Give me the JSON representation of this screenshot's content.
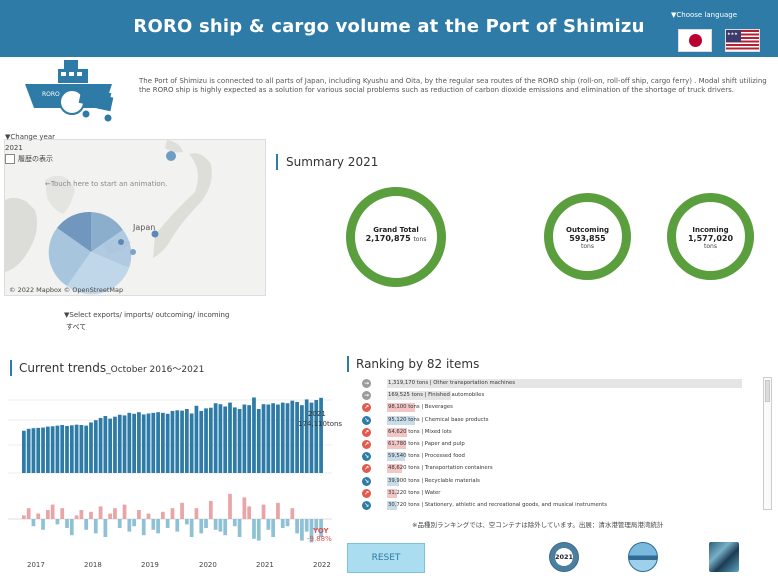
{
  "header": {
    "title": "RORO ship & cargo volume at the Port of Shimizu",
    "choose_language": "▼Choose language"
  },
  "intro": {
    "text": "The Port of Shimizu is connected to all parts of Japan, including Kyushu and Oita, by the regular sea routes of the RORO ship (roll-on, roll-off ship, cargo ferry) . Modal shift utilizing the RORO ship is highly expected as a solution for various social problems such as reduction of carbon dioxide emissions and elimination of the shortage of truck drivers.",
    "ship_label": "RORO"
  },
  "map": {
    "change_year_label": "▼Change year",
    "year": "2021",
    "history_label": "履歴の表示",
    "hint": "←Touch here to start an animation.",
    "japan_label": "Japan",
    "credit": "© 2022 Mapbox © OpenStreetMap",
    "select_label": "▼Select exports/ imports/ outcoming/ incoming",
    "select_value": "すべて"
  },
  "summary": {
    "title": "Summary 2021",
    "grand_total": {
      "label": "Grand Total",
      "value": "2,170,875",
      "unit": "tons"
    },
    "outcoming": {
      "label": "Outcoming",
      "value": "593,855",
      "unit": "tons"
    },
    "incoming": {
      "label": "Incoming",
      "value": "1,577,020",
      "unit": "tons"
    }
  },
  "trends": {
    "title": "Current trends",
    "subtitle": "_October 2016～2021",
    "bar_label_year": "2021",
    "bar_label_value": "174,110tons",
    "yoy_label": "YOY",
    "yoy_value": "-9.88%",
    "years": [
      "2017",
      "2018",
      "2019",
      "2020",
      "2021",
      "2022"
    ]
  },
  "chart_data": [
    {
      "type": "bar",
      "title": "",
      "xlabel": "",
      "ylabel": "",
      "x_range": [
        "2016-10",
        "2022-01"
      ],
      "values": [
        132,
        138,
        140,
        141,
        142,
        145,
        146,
        148,
        150,
        147,
        149,
        151,
        150,
        148,
        158,
        165,
        172,
        178,
        170,
        176,
        182,
        180,
        188,
        185,
        190,
        183,
        186,
        188,
        190,
        188,
        185,
        194,
        196,
        195,
        200,
        186,
        210,
        194,
        202,
        204,
        218,
        215,
        208,
        220,
        205,
        200,
        214,
        212,
        236,
        200,
        215,
        214,
        218,
        214,
        220,
        218,
        226,
        222,
        212,
        230,
        220,
        228,
        235
      ],
      "color": "#2d7ba6",
      "highlight_label": "174,110tons"
    },
    {
      "type": "bar",
      "title": "YOY",
      "values": [
        2,
        6,
        -4,
        3,
        -6,
        5,
        8,
        -3,
        6,
        -5,
        -9,
        2,
        5,
        -6,
        4,
        -8,
        7,
        -10,
        3,
        6,
        -5,
        8,
        -7,
        -4,
        5,
        -9,
        3,
        -6,
        -8,
        4,
        -5,
        6,
        -7,
        9,
        -3,
        -10,
        6,
        -8,
        -5,
        10,
        -6,
        -7,
        -9,
        14,
        -4,
        -10,
        12,
        7,
        -11,
        -12,
        8,
        -6,
        -10,
        9,
        -5,
        -4,
        6,
        -8,
        -12,
        -7,
        -13,
        -6,
        -10
      ],
      "positive_color": "#e8a4a6",
      "negative_color": "#8fc1d6"
    }
  ],
  "ranking": {
    "title": "Ranking by 82 items",
    "items": [
      {
        "value": "1,319,170 tons",
        "label": "Other transportation machines",
        "trend": "flat",
        "share": 1.0
      },
      {
        "value": "169,525 tons",
        "label": "Finished automobiles",
        "trend": "flat",
        "share": 0.18
      },
      {
        "value": "98,100 tons",
        "label": "Beverages",
        "trend": "up",
        "share": 0.08
      },
      {
        "value": "95,120 tons",
        "label": "Chemical base products",
        "trend": "down",
        "share": 0.078
      },
      {
        "value": "64,620 tons",
        "label": "Mixed lots",
        "trend": "up",
        "share": 0.055
      },
      {
        "value": "61,780 tons",
        "label": "Paper and pulp",
        "trend": "up",
        "share": 0.053
      },
      {
        "value": "59,540 tons",
        "label": "Processed food",
        "trend": "down",
        "share": 0.051
      },
      {
        "value": "48,620 tons",
        "label": "Transportation containers",
        "trend": "up",
        "share": 0.042
      },
      {
        "value": "39,900 tons",
        "label": "Recyclable materials",
        "trend": "down",
        "share": 0.035
      },
      {
        "value": "31,220 tons",
        "label": "Water",
        "trend": "up",
        "share": 0.028
      },
      {
        "value": "30,720 tons",
        "label": "Stationery, athletic and recreational goods, and musical instruments",
        "trend": "down",
        "share": 0.027
      }
    ],
    "note": "※品種別ランキングでは、空コンテナは除外しています。出展：清水港管理局港湾統計"
  },
  "footer": {
    "reset_label": "RESET",
    "icon1_label": "2021"
  },
  "colors": {
    "header": "#2d7ba6",
    "ring": "#5a9e3e",
    "bar": "#2d7ba6",
    "up": "#e05a4f",
    "down": "#2d7ba6",
    "flat": "#9a9a9a"
  }
}
